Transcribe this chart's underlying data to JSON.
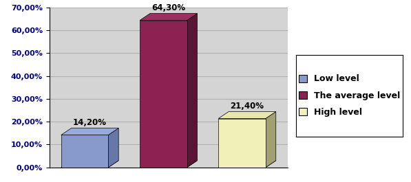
{
  "categories": [
    "Low level",
    "The average level",
    "High level"
  ],
  "values": [
    14.2,
    64.3,
    21.4
  ],
  "bar_colors_front": [
    "#8899cc",
    "#8b2252",
    "#f0f0b8"
  ],
  "bar_colors_side": [
    "#6677aa",
    "#5a1535",
    "#a0a070"
  ],
  "bar_colors_top": [
    "#99aadd",
    "#9b3060",
    "#e8e8a8"
  ],
  "floor_color": "#999999",
  "wall_color": "#d0d0d0",
  "labels": [
    "14,20%",
    "64,30%",
    "21,40%"
  ],
  "legend_labels": [
    "Low level",
    "The average level",
    "High level"
  ],
  "legend_colors": [
    "#8899cc",
    "#8b2252",
    "#f0f0b8"
  ],
  "ylim": [
    0,
    0.7
  ],
  "yticks": [
    0.0,
    0.1,
    0.2,
    0.3,
    0.4,
    0.5,
    0.6,
    0.7
  ],
  "ytick_labels": [
    "0,00%",
    "10,00%",
    "20,00%",
    "30,00%",
    "40,00%",
    "50,00%",
    "60,00%",
    "70,00%"
  ],
  "background_color": "#ffffff",
  "plot_bg_color": "#d4d4d4",
  "grid_color": "#b0b0b0",
  "label_fontsize": 8.5,
  "tick_fontsize": 8,
  "legend_fontsize": 9
}
